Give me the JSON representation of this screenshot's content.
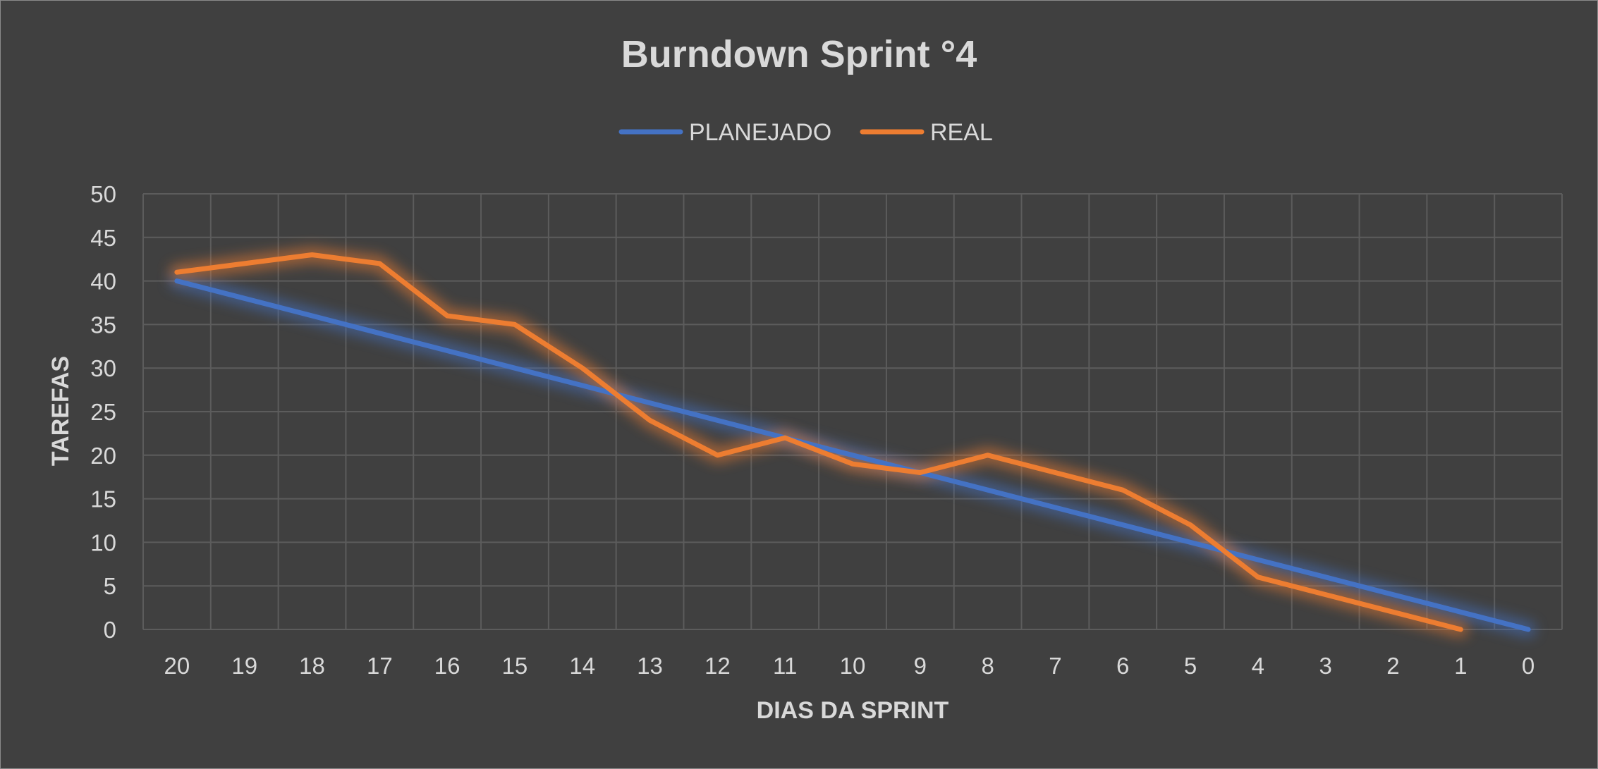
{
  "chart_data": {
    "type": "line",
    "title": "Burndown Sprint °4",
    "xlabel": "DIAS DA SPRINT",
    "ylabel": "TAREFAS",
    "x": [
      "20",
      "19",
      "18",
      "17",
      "16",
      "15",
      "14",
      "13",
      "12",
      "11",
      "10",
      "9",
      "8",
      "7",
      "6",
      "5",
      "4",
      "3",
      "2",
      "1",
      "0"
    ],
    "ylim": [
      0,
      50
    ],
    "yticks": [
      "0",
      "5",
      "10",
      "15",
      "20",
      "25",
      "30",
      "35",
      "40",
      "45",
      "50"
    ],
    "grid": true,
    "legend_position": "top",
    "series": [
      {
        "name": "PLANEJADO",
        "color": "#4472c4",
        "values": [
          40,
          38,
          36,
          34,
          32,
          30,
          28,
          26,
          24,
          22,
          20,
          18,
          16,
          14,
          12,
          10,
          8,
          6,
          4,
          2,
          0
        ]
      },
      {
        "name": "REAL",
        "color": "#ed7d31",
        "values": [
          41,
          42,
          43,
          42,
          36,
          35,
          30,
          24,
          20,
          22,
          19,
          18,
          20,
          18,
          16,
          12,
          6,
          4,
          2,
          0,
          null
        ]
      }
    ]
  }
}
